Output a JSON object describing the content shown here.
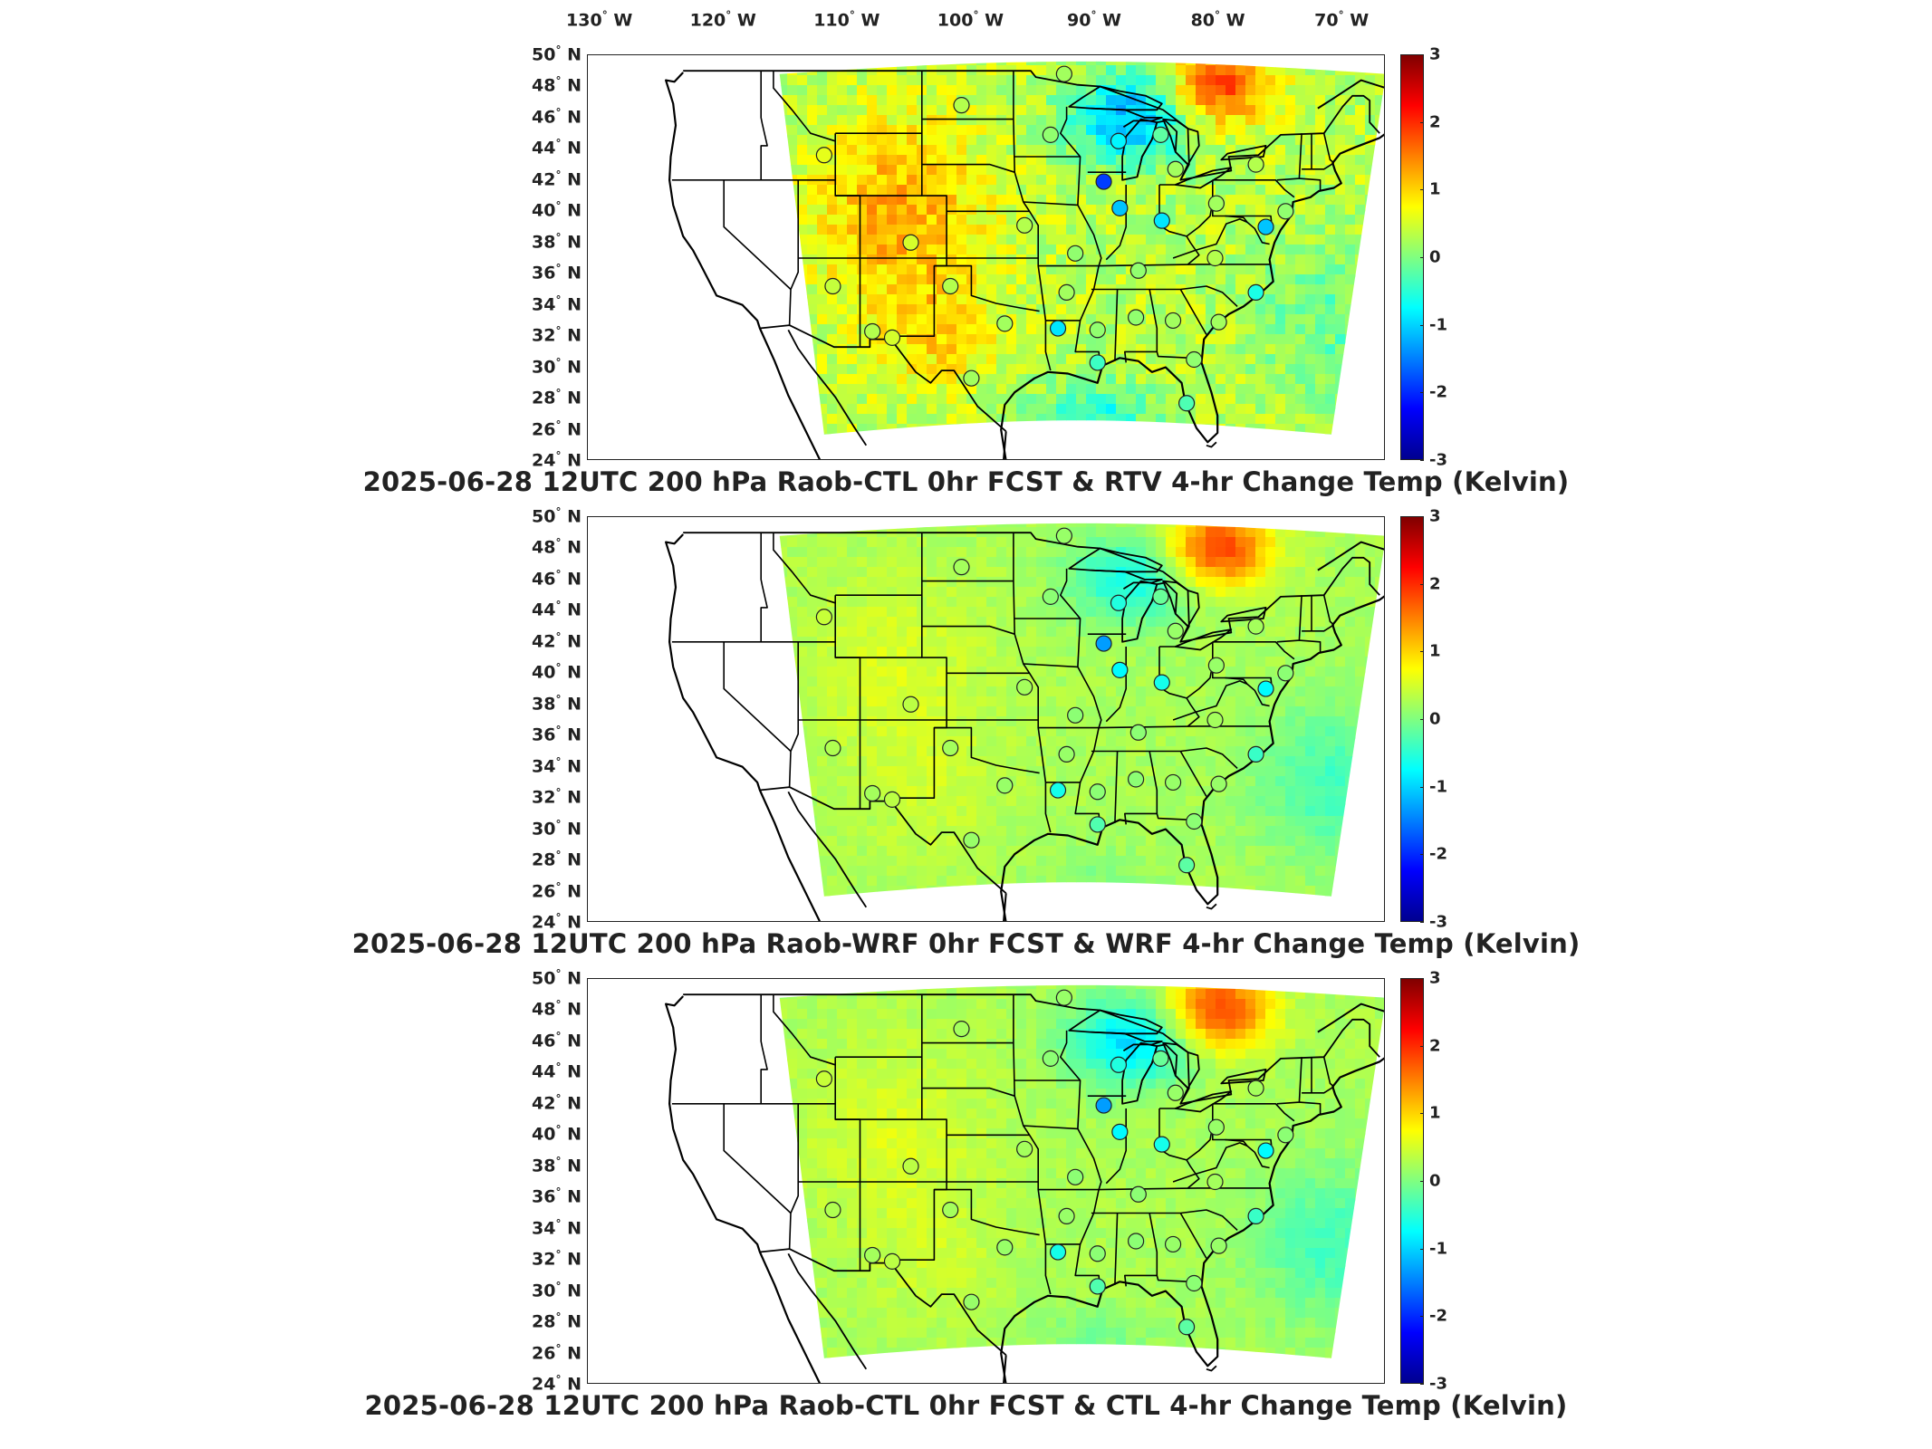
{
  "longitude_labels": [
    {
      "deg": "130",
      "hemi": "W",
      "lon": -130
    },
    {
      "deg": "120",
      "hemi": "W",
      "lon": -120
    },
    {
      "deg": "110",
      "hemi": "W",
      "lon": -110
    },
    {
      "deg": "100",
      "hemi": "W",
      "lon": -100
    },
    {
      "deg": "90",
      "hemi": "W",
      "lon": -90
    },
    {
      "deg": "80",
      "hemi": "W",
      "lon": -80
    },
    {
      "deg": "70",
      "hemi": "W",
      "lon": -70
    }
  ],
  "latitude_labels": [
    {
      "deg": "50",
      "hemi": "N",
      "lat": 50
    },
    {
      "deg": "48",
      "hemi": "N",
      "lat": 48
    },
    {
      "deg": "46",
      "hemi": "N",
      "lat": 46
    },
    {
      "deg": "44",
      "hemi": "N",
      "lat": 44
    },
    {
      "deg": "42",
      "hemi": "N",
      "lat": 42
    },
    {
      "deg": "40",
      "hemi": "N",
      "lat": 40
    },
    {
      "deg": "38",
      "hemi": "N",
      "lat": 38
    },
    {
      "deg": "36",
      "hemi": "N",
      "lat": 36
    },
    {
      "deg": "34",
      "hemi": "N",
      "lat": 34
    },
    {
      "deg": "32",
      "hemi": "N",
      "lat": 32
    },
    {
      "deg": "30",
      "hemi": "N",
      "lat": 30
    },
    {
      "deg": "28",
      "hemi": "N",
      "lat": 28
    },
    {
      "deg": "26",
      "hemi": "N",
      "lat": 26
    },
    {
      "deg": "24",
      "hemi": "N",
      "lat": 24
    }
  ],
  "colorbar": {
    "min": -3,
    "max": 3,
    "ticks": [
      "3",
      "2",
      "1",
      "0",
      "-1",
      "-2",
      "-3"
    ],
    "colormap": [
      "#00008f",
      "#0000ff",
      "#0080ff",
      "#00ffff",
      "#80ff80",
      "#ffff00",
      "#ff8000",
      "#ff0000",
      "#800000"
    ]
  },
  "panels": [
    {
      "title": "2025-06-28 12UTC 200 hPa Raob-CTL 0hr FCST & RTV 4-hr Change Temp (Kelvin)",
      "field": {
        "base": 0.35,
        "west_warm": 0.9,
        "lakes_cold": -1.6,
        "ne_warm": 1.6,
        "gulf_cold": -0.9,
        "atl_cold": -0.5,
        "noise": 0.35
      }
    },
    {
      "title": "2025-06-28 12UTC 200 hPa Raob-WRF 0hr FCST & WRF 4-hr Change Temp (Kelvin)",
      "field": {
        "base": 0.25,
        "west_warm": 0.3,
        "lakes_cold": -0.9,
        "ne_warm": 1.7,
        "gulf_cold": -0.2,
        "atl_cold": -0.6,
        "noise": 0.12
      }
    },
    {
      "title": "2025-06-28 12UTC 200 hPa Raob-CTL 0hr FCST & CTL 4-hr Change Temp (Kelvin)",
      "field": {
        "base": 0.25,
        "west_warm": 0.3,
        "lakes_cold": -1.2,
        "ne_warm": 1.7,
        "gulf_cold": -0.3,
        "atl_cold": -0.6,
        "noise": 0.12
      }
    }
  ],
  "raob_stations": [
    {
      "lon": -92.5,
      "lat": 48.8,
      "v": 0.2
    },
    {
      "lon": -100.8,
      "lat": 46.8,
      "v": 0.3
    },
    {
      "lon": -93.6,
      "lat": 44.9,
      "v": 0.1
    },
    {
      "lon": -88.1,
      "lat": 44.5,
      "v": -0.8
    },
    {
      "lon": -84.7,
      "lat": 44.9,
      "v": -0.2
    },
    {
      "lon": -111.9,
      "lat": 43.6,
      "v": 0.6
    },
    {
      "lon": -83.5,
      "lat": 42.7,
      "v": 0.2
    },
    {
      "lon": -89.3,
      "lat": 41.9,
      "v": -1.9
    },
    {
      "lon": -77.0,
      "lat": 43.0,
      "v": 0.3
    },
    {
      "lon": -88.0,
      "lat": 40.2,
      "v": -1.1
    },
    {
      "lon": -80.2,
      "lat": 40.5,
      "v": 0.2
    },
    {
      "lon": -84.6,
      "lat": 39.4,
      "v": -0.9
    },
    {
      "lon": -95.7,
      "lat": 39.1,
      "v": 0.3
    },
    {
      "lon": -104.9,
      "lat": 38.0,
      "v": 0.5
    },
    {
      "lon": -76.2,
      "lat": 39.0,
      "v": -1.1
    },
    {
      "lon": -74.6,
      "lat": 40.0,
      "v": 0.1
    },
    {
      "lon": -91.6,
      "lat": 37.3,
      "v": 0.1
    },
    {
      "lon": -86.5,
      "lat": 36.2,
      "v": 0.1
    },
    {
      "lon": -80.3,
      "lat": 37.0,
      "v": 0.3
    },
    {
      "lon": -111.2,
      "lat": 35.2,
      "v": 0.4
    },
    {
      "lon": -101.7,
      "lat": 35.2,
      "v": 0.3
    },
    {
      "lon": -92.3,
      "lat": 34.8,
      "v": 0.2
    },
    {
      "lon": -77.0,
      "lat": 34.8,
      "v": -0.6
    },
    {
      "lon": -108.0,
      "lat": 32.3,
      "v": 0.3
    },
    {
      "lon": -97.3,
      "lat": 32.8,
      "v": 0.2
    },
    {
      "lon": -93.0,
      "lat": 32.5,
      "v": -0.9
    },
    {
      "lon": -89.8,
      "lat": 32.4,
      "v": 0.1
    },
    {
      "lon": -86.7,
      "lat": 33.2,
      "v": 0.1
    },
    {
      "lon": -83.7,
      "lat": 33.0,
      "v": 0.2
    },
    {
      "lon": -80.0,
      "lat": 32.9,
      "v": 0.2
    },
    {
      "lon": -106.4,
      "lat": 31.9,
      "v": 0.5
    },
    {
      "lon": -100.0,
      "lat": 29.3,
      "v": 0.2
    },
    {
      "lon": -89.8,
      "lat": 30.3,
      "v": -0.4
    },
    {
      "lon": -82.0,
      "lat": 30.5,
      "v": 0.1
    },
    {
      "lon": -82.6,
      "lat": 27.7,
      "v": -0.3
    }
  ]
}
